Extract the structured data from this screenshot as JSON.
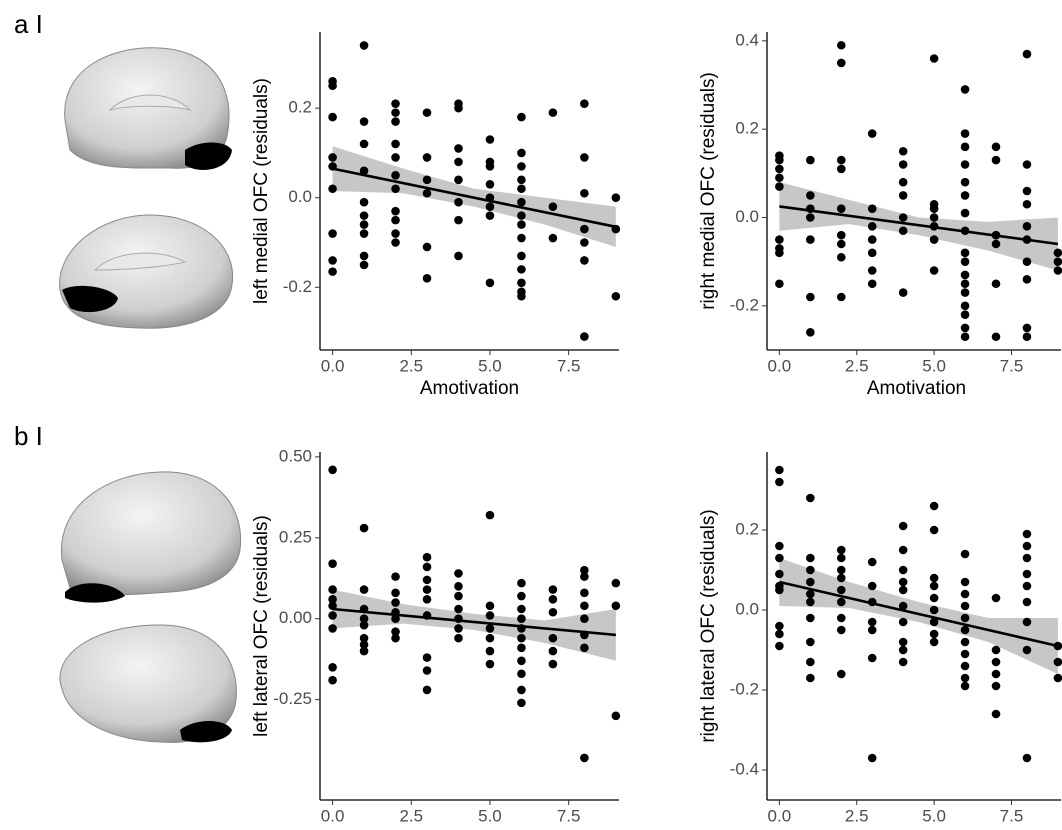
{
  "panels": [
    "a I",
    "b I"
  ],
  "chart_data": [
    {
      "type": "scatter",
      "x_label": "Amotivation",
      "y_label": "left medial OFC (residuals)",
      "color": "#000000",
      "band_color": "#bdbdbd",
      "line_color": "#000000",
      "xlim": [
        -0.4,
        9.1
      ],
      "ylim": [
        -0.34,
        0.37
      ],
      "xticks": [
        {
          "value": 0,
          "label": "0.0"
        },
        2.5,
        {
          "value": 5,
          "label": "5.0"
        },
        7.5
      ],
      "yticks": [
        0.2,
        {
          "value": 0,
          "label": "0.0"
        },
        -0.2
      ],
      "x": [
        0,
        0,
        0,
        0,
        0,
        0,
        0,
        0,
        0,
        1,
        1,
        1,
        1,
        1,
        1,
        1,
        1,
        1,
        1,
        2,
        2,
        2,
        2,
        2,
        2,
        2,
        2,
        2,
        2,
        2,
        3,
        3,
        3,
        3,
        3,
        3,
        4,
        4,
        4,
        4,
        4,
        4,
        4,
        4,
        5,
        5,
        5,
        5,
        5,
        5,
        5,
        5,
        6,
        6,
        6,
        6,
        6,
        6,
        6,
        6,
        6,
        6,
        6,
        6,
        6,
        6,
        7,
        7,
        7,
        8,
        8,
        8,
        8,
        8,
        8,
        8,
        9,
        9,
        9
      ],
      "y": [
        0.26,
        0.25,
        0.18,
        0.09,
        0.07,
        0.02,
        -0.08,
        -0.14,
        -0.165,
        0.34,
        0.17,
        0.12,
        0.06,
        -0.01,
        -0.04,
        -0.06,
        -0.08,
        -0.13,
        -0.15,
        0.21,
        0.19,
        0.17,
        0.12,
        0.09,
        0.05,
        0.02,
        -0.03,
        -0.05,
        -0.08,
        -0.1,
        0.19,
        0.09,
        0.04,
        0.01,
        -0.11,
        -0.18,
        0.21,
        0.2,
        0.11,
        0.08,
        0.04,
        -0.01,
        -0.05,
        -0.13,
        0.13,
        0.08,
        0.07,
        0.03,
        0.0,
        -0.02,
        -0.04,
        -0.19,
        0.18,
        0.1,
        0.07,
        0.04,
        0.02,
        -0.01,
        -0.04,
        -0.06,
        -0.09,
        -0.13,
        -0.16,
        -0.19,
        -0.21,
        -0.22,
        0.19,
        -0.02,
        -0.09,
        0.21,
        0.09,
        0.01,
        -0.07,
        -0.1,
        -0.14,
        -0.31,
        0.0,
        -0.07,
        -0.22
      ],
      "fit_x": [
        0,
        9
      ],
      "fit_y": [
        0.065,
        -0.065
      ],
      "ci_x": [
        0,
        2.25,
        4.5,
        6.75,
        9
      ],
      "ci_lower": [
        0.015,
        0.01,
        -0.02,
        -0.06,
        -0.11
      ],
      "ci_upper": [
        0.115,
        0.065,
        0.02,
        0.0,
        -0.02
      ]
    },
    {
      "type": "scatter",
      "x_label": "Amotivation",
      "y_label": "right medial OFC (residuals)",
      "color": "#000000",
      "band_color": "#bdbdbd",
      "line_color": "#000000",
      "xlim": [
        -0.4,
        9.1
      ],
      "ylim": [
        -0.3,
        0.42
      ],
      "xticks": [
        {
          "value": 0,
          "label": "0.0"
        },
        2.5,
        {
          "value": 5,
          "label": "5.0"
        },
        7.5
      ],
      "yticks": [
        0.4,
        0.2,
        {
          "value": 0,
          "label": "0.0"
        },
        -0.2
      ],
      "x": [
        0,
        0,
        0,
        0,
        0,
        0,
        0,
        0,
        0,
        1,
        1,
        1,
        1,
        1,
        1,
        1,
        2,
        2,
        2,
        2,
        2,
        2,
        2,
        2,
        2,
        3,
        3,
        3,
        3,
        3,
        3,
        3,
        4,
        4,
        4,
        4,
        4,
        4,
        4,
        5,
        5,
        5,
        5,
        5,
        5,
        5,
        6,
        6,
        6,
        6,
        6,
        6,
        6,
        6,
        6,
        6,
        6,
        6,
        6,
        6,
        6,
        6,
        6,
        7,
        7,
        7,
        7,
        7,
        7,
        8,
        8,
        8,
        8,
        8,
        8,
        8,
        8,
        8,
        8,
        9,
        9,
        9
      ],
      "y": [
        0.14,
        0.13,
        0.11,
        0.09,
        0.07,
        -0.05,
        -0.07,
        -0.08,
        -0.15,
        0.13,
        0.05,
        0.02,
        0.0,
        -0.05,
        -0.18,
        -0.26,
        0.39,
        0.35,
        0.13,
        0.11,
        0.02,
        -0.04,
        -0.06,
        -0.09,
        -0.18,
        0.19,
        0.02,
        -0.02,
        -0.05,
        -0.08,
        -0.12,
        -0.15,
        0.15,
        0.12,
        0.08,
        0.05,
        0.0,
        -0.03,
        -0.17,
        0.36,
        0.03,
        0.02,
        0.0,
        -0.02,
        -0.05,
        -0.12,
        0.29,
        0.19,
        0.16,
        0.12,
        0.08,
        0.05,
        0.01,
        -0.03,
        -0.08,
        -0.1,
        -0.13,
        -0.15,
        -0.17,
        -0.2,
        -0.22,
        -0.25,
        -0.27,
        0.16,
        0.13,
        -0.04,
        -0.06,
        -0.15,
        -0.27,
        0.37,
        0.12,
        0.06,
        0.03,
        -0.02,
        -0.05,
        -0.1,
        -0.14,
        -0.25,
        -0.27,
        -0.08,
        -0.1,
        -0.12
      ],
      "fit_x": [
        0,
        9
      ],
      "fit_y": [
        0.025,
        -0.06
      ],
      "ci_x": [
        0,
        2.25,
        4.5,
        6.75,
        9
      ],
      "ci_lower": [
        -0.03,
        -0.015,
        -0.04,
        -0.075,
        -0.12
      ],
      "ci_upper": [
        0.08,
        0.04,
        0.0,
        -0.01,
        0.0
      ]
    },
    {
      "type": "scatter",
      "x_label": "Amotivation",
      "y_label": "left lateral OFC (residuals)",
      "color": "#000000",
      "band_color": "#bdbdbd",
      "line_color": "#000000",
      "xlim": [
        -0.4,
        9.1
      ],
      "ylim": [
        -0.56,
        0.515
      ],
      "xticks": [
        {
          "value": 0,
          "label": "0.0"
        },
        2.5,
        {
          "value": 5,
          "label": "5.0"
        },
        7.5
      ],
      "yticks": [
        {
          "value": 0.5,
          "label": "0.50"
        },
        0.25,
        {
          "value": 0,
          "label": "0.00"
        },
        -0.25
      ],
      "x": [
        0,
        0,
        0,
        0,
        0,
        0,
        0,
        0,
        0,
        1,
        1,
        1,
        1,
        1,
        1,
        1,
        1,
        2,
        2,
        2,
        2,
        2,
        2,
        2,
        3,
        3,
        3,
        3,
        3,
        3,
        3,
        3,
        3,
        4,
        4,
        4,
        4,
        4,
        4,
        4,
        5,
        5,
        5,
        5,
        5,
        5,
        5,
        6,
        6,
        6,
        6,
        6,
        6,
        6,
        6,
        6,
        6,
        6,
        7,
        7,
        7,
        7,
        7,
        7,
        8,
        8,
        8,
        8,
        8,
        8,
        8,
        8,
        9,
        9,
        9
      ],
      "y": [
        0.46,
        0.17,
        0.09,
        0.06,
        0.04,
        0.01,
        -0.03,
        -0.15,
        -0.19,
        0.28,
        0.09,
        0.03,
        0.0,
        -0.02,
        -0.06,
        -0.08,
        -0.1,
        0.13,
        0.08,
        0.05,
        0.02,
        0.0,
        -0.04,
        -0.06,
        0.19,
        0.16,
        0.12,
        0.09,
        0.06,
        0.01,
        -0.12,
        -0.16,
        -0.22,
        0.14,
        0.1,
        0.07,
        0.03,
        0.0,
        -0.03,
        -0.06,
        0.32,
        0.04,
        0.01,
        -0.03,
        -0.06,
        -0.1,
        -0.14,
        0.11,
        0.07,
        0.03,
        0.0,
        -0.03,
        -0.06,
        -0.09,
        -0.13,
        -0.17,
        -0.22,
        -0.26,
        0.09,
        0.06,
        0.02,
        -0.06,
        -0.1,
        -0.14,
        0.15,
        0.13,
        0.08,
        0.04,
        0.0,
        -0.05,
        -0.09,
        -0.43,
        0.11,
        0.04,
        -0.3
      ],
      "fit_x": [
        0,
        9
      ],
      "fit_y": [
        0.03,
        -0.05
      ],
      "ci_x": [
        0,
        2.25,
        4.5,
        6.75,
        9
      ],
      "ci_lower": [
        -0.03,
        -0.015,
        -0.035,
        -0.075,
        -0.13
      ],
      "ci_upper": [
        0.09,
        0.045,
        0.015,
        -0.005,
        0.03
      ]
    },
    {
      "type": "scatter",
      "x_label": "Amotivation",
      "y_label": "right lateral OFC (residuals)",
      "color": "#000000",
      "band_color": "#bdbdbd",
      "line_color": "#000000",
      "xlim": [
        -0.4,
        9.1
      ],
      "ylim": [
        -0.475,
        0.395
      ],
      "xticks": [
        {
          "value": 0,
          "label": "0.0"
        },
        2.5,
        {
          "value": 5,
          "label": "5.0"
        },
        7.5
      ],
      "yticks": [
        0.2,
        {
          "value": 0,
          "label": "0.0"
        },
        -0.2,
        -0.4
      ],
      "x": [
        0,
        0,
        0,
        0,
        0,
        0,
        0,
        0,
        0,
        0,
        1,
        1,
        1,
        1,
        1,
        1,
        1,
        1,
        1,
        1,
        2,
        2,
        2,
        2,
        2,
        2,
        2,
        2,
        2,
        3,
        3,
        3,
        3,
        3,
        3,
        3,
        4,
        4,
        4,
        4,
        4,
        4,
        4,
        4,
        4,
        4,
        5,
        5,
        5,
        5,
        5,
        5,
        5,
        5,
        5,
        6,
        6,
        6,
        6,
        6,
        6,
        6,
        6,
        6,
        6,
        6,
        7,
        7,
        7,
        7,
        7,
        7,
        8,
        8,
        8,
        8,
        8,
        8,
        8,
        8,
        8,
        9,
        9,
        9
      ],
      "y": [
        0.35,
        0.32,
        0.16,
        0.13,
        0.09,
        0.06,
        0.05,
        -0.04,
        -0.06,
        -0.09,
        0.28,
        0.13,
        0.1,
        0.07,
        0.04,
        0.02,
        -0.02,
        -0.08,
        -0.13,
        -0.17,
        0.15,
        0.13,
        0.1,
        0.08,
        0.05,
        0.02,
        -0.02,
        -0.05,
        -0.16,
        0.12,
        0.06,
        0.02,
        -0.03,
        -0.05,
        -0.12,
        -0.37,
        0.21,
        0.15,
        0.1,
        0.07,
        0.05,
        0.01,
        -0.03,
        -0.08,
        -0.1,
        -0.13,
        0.26,
        0.2,
        0.08,
        0.06,
        0.03,
        0.0,
        -0.03,
        -0.06,
        -0.08,
        0.14,
        0.07,
        0.04,
        0.01,
        -0.02,
        -0.05,
        -0.08,
        -0.11,
        -0.14,
        -0.17,
        -0.19,
        0.03,
        -0.1,
        -0.13,
        -0.16,
        -0.19,
        -0.26,
        0.19,
        0.16,
        0.13,
        0.09,
        0.06,
        0.02,
        -0.03,
        -0.1,
        -0.37,
        -0.09,
        -0.13,
        -0.17
      ],
      "fit_x": [
        0,
        9
      ],
      "fit_y": [
        0.07,
        -0.09
      ],
      "ci_x": [
        0,
        2.25,
        4.5,
        6.75,
        9
      ],
      "ci_lower": [
        0.01,
        0.005,
        -0.03,
        -0.08,
        -0.16
      ],
      "ci_upper": [
        0.13,
        0.07,
        0.02,
        -0.02,
        -0.02
      ]
    }
  ]
}
